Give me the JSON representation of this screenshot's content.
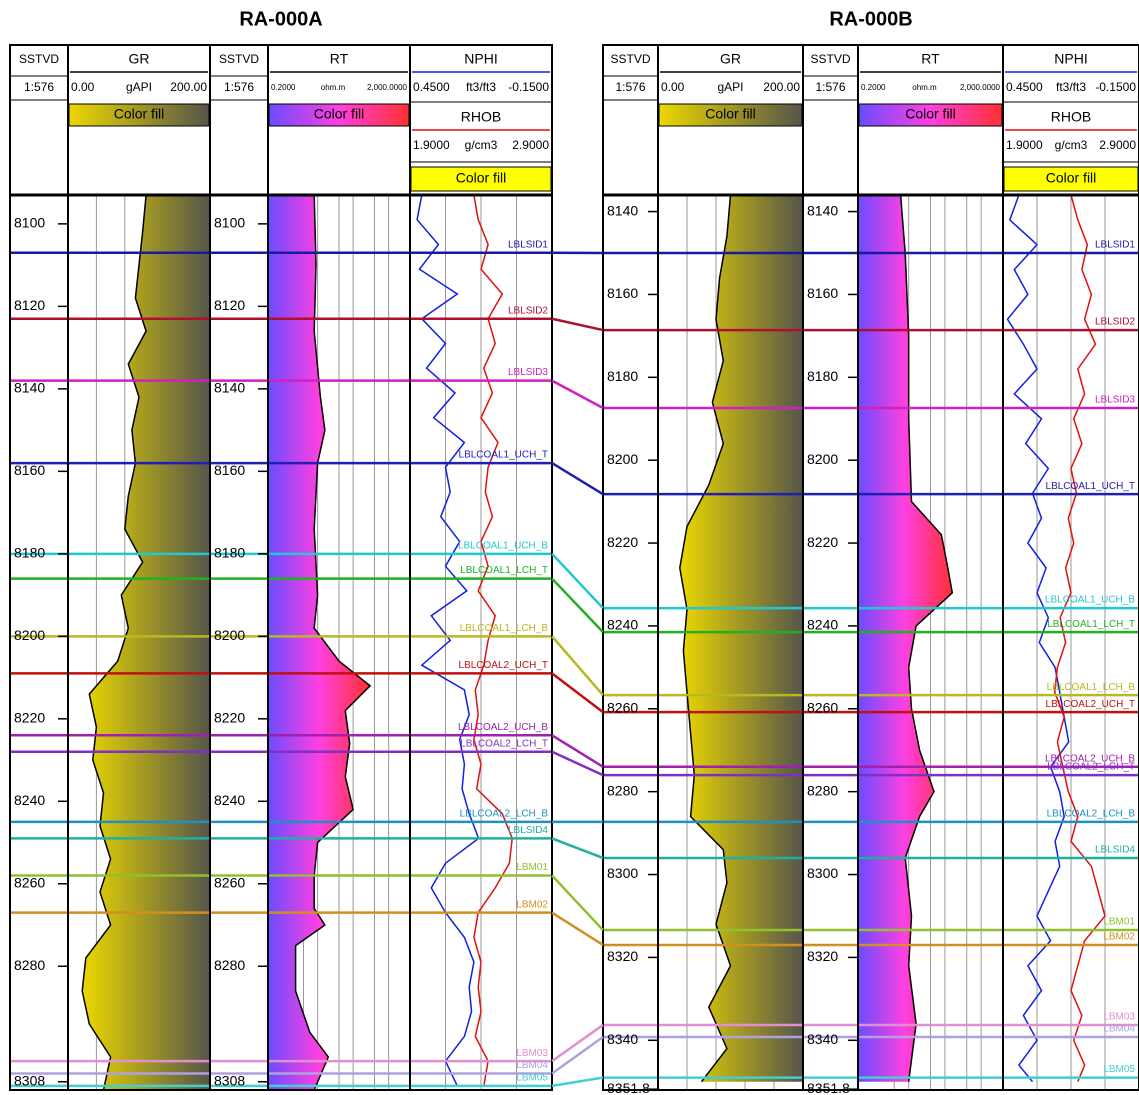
{
  "header": {
    "depth": {
      "title": "SSTVD",
      "scale": "1:576"
    },
    "tracks": [
      {
        "title": "GR",
        "unit": "gAPI",
        "scale": [
          {
            "value": 0,
            "label": "0.00"
          },
          {
            "value": 200,
            "label": "200.00"
          }
        ],
        "color": "#000000",
        "fill_label": "Color fill",
        "fill": [
          "#ecd800",
          "#55554a"
        ],
        "fill_side": "right",
        "grid": [
          40,
          80,
          120,
          160
        ]
      },
      {
        "title": "RT",
        "unit": "ohm.m",
        "scale": [
          {
            "value": 0.2,
            "label": "0.2000"
          },
          {
            "value": 2000,
            "label": "2,000.0000"
          }
        ],
        "log": true,
        "color": "#000000",
        "fill_label": "Color fill",
        "fill": [
          "#6a4cff",
          "#ff40e0",
          "#ff3030"
        ],
        "fill_side": "left",
        "grid": [
          2,
          5,
          20,
          50,
          200,
          500
        ]
      },
      {
        "title": "NPHI",
        "unit": "ft3/ft3",
        "scale": [
          {
            "value": 0.45,
            "label": "0.4500"
          },
          {
            "value": -0.15,
            "label": "-0.1500"
          }
        ],
        "color": "#1020e0",
        "grid": [
          0.3,
          0.15,
          0
        ]
      },
      {
        "title": "RHOB",
        "unit": "g/cm3",
        "scale": [
          {
            "value": 1.9,
            "label": "1.9000"
          },
          {
            "value": 2.9,
            "label": "2.9000"
          }
        ],
        "color": "#e01010",
        "fill_label": "Color fill",
        "fill": [
          "#ffff00"
        ]
      }
    ]
  },
  "tops": [
    {
      "name": "LBLSID1",
      "color": "#1a1aa0"
    },
    {
      "name": "LBLSID2",
      "color": "#b01030"
    },
    {
      "name": "LBLSID3",
      "color": "#d020c0"
    },
    {
      "name": "LBLCOAL1_UCH_T",
      "color": "#2020b0"
    },
    {
      "name": "LBLCOAL1_UCH_B",
      "color": "#20c8d0"
    },
    {
      "name": "LBLCOAL1_LCH_T",
      "color": "#20b020"
    },
    {
      "name": "LBLCOAL1_LCH_B",
      "color": "#b8b820"
    },
    {
      "name": "LBLCOAL2_UCH_T",
      "color": "#c01010"
    },
    {
      "name": "LBLCOAL2_UCH_B",
      "color": "#a020b0"
    },
    {
      "name": "LBLCOAL2_LCH_T",
      "color": "#8030c0"
    },
    {
      "name": "LBLCOAL2_LCH_B",
      "color": "#2090c0"
    },
    {
      "name": "LBLSID4",
      "color": "#20b0a0"
    },
    {
      "name": "LBM01",
      "color": "#90c030"
    },
    {
      "name": "LBM02",
      "color": "#d09020"
    },
    {
      "name": "LBM03",
      "color": "#e090d0"
    },
    {
      "name": "LBM04",
      "color": "#b0a0e0"
    },
    {
      "name": "LBM05",
      "color": "#40d0d0"
    }
  ],
  "wells": [
    {
      "name": "RA-000A",
      "depth_range": [
        8093,
        8310
      ],
      "depth_ticks": [
        8100,
        8120,
        8140,
        8160,
        8180,
        8200,
        8220,
        8240,
        8260,
        8280,
        8308
      ],
      "top_depths": [
        8107,
        8123,
        8138,
        8158,
        8180,
        8186,
        8200,
        8209,
        8224,
        8228,
        8245,
        8249,
        8258,
        8267,
        8303,
        8306,
        8309
      ],
      "curves": [
        {
          "depths": [
            8093,
            8102,
            8110,
            8118,
            8126,
            8134,
            8142,
            8150,
            8158,
            8166,
            8174,
            8182,
            8190,
            8198,
            8206,
            8214,
            8222,
            8230,
            8238,
            8246,
            8254,
            8262,
            8270,
            8278,
            8286,
            8294,
            8302,
            8310
          ],
          "values": [
            110,
            105,
            100,
            95,
            110,
            85,
            100,
            90,
            95,
            85,
            80,
            105,
            75,
            85,
            70,
            30,
            40,
            35,
            50,
            45,
            60,
            45,
            60,
            25,
            20,
            30,
            60,
            50
          ]
        },
        {
          "depths": [
            8093,
            8110,
            8126,
            8142,
            8150,
            8158,
            8174,
            8190,
            8198,
            8206,
            8212,
            8218,
            8226,
            8234,
            8242,
            8250,
            8258,
            8266,
            8270,
            8275,
            8286,
            8296,
            8302,
            8310
          ],
          "values": [
            4,
            4.5,
            4,
            6,
            8,
            5,
            4,
            5,
            4,
            20,
            150,
            30,
            40,
            30,
            50,
            5,
            4,
            4,
            8,
            1.2,
            1.2,
            3,
            10,
            4
          ]
        },
        {
          "depths": [
            8093,
            8099,
            8105,
            8111,
            8117,
            8123,
            8129,
            8135,
            8141,
            8147,
            8153,
            8159,
            8165,
            8171,
            8177,
            8183,
            8189,
            8195,
            8201,
            8207,
            8213,
            8219,
            8225,
            8231,
            8237,
            8243,
            8249,
            8255,
            8261,
            8267,
            8273,
            8279,
            8285,
            8291,
            8297,
            8303,
            8309
          ],
          "values": [
            0.4,
            0.42,
            0.33,
            0.41,
            0.25,
            0.4,
            0.3,
            0.38,
            0.26,
            0.35,
            0.22,
            0.3,
            0.28,
            0.32,
            0.24,
            0.3,
            0.21,
            0.36,
            0.28,
            0.4,
            0.22,
            0.2,
            0.24,
            0.22,
            0.23,
            0.2,
            0.16,
            0.3,
            0.36,
            0.3,
            0.22,
            0.18,
            0.2,
            0.19,
            0.22,
            0.3,
            0.25
          ]
        },
        {
          "depths": [
            8093,
            8099,
            8105,
            8111,
            8117,
            8123,
            8129,
            8135,
            8141,
            8147,
            8153,
            8159,
            8165,
            8171,
            8177,
            8183,
            8189,
            8195,
            8201,
            8207,
            8213,
            8219,
            8225,
            8231,
            8237,
            8243,
            8249,
            8255,
            8261,
            8267,
            8273,
            8279,
            8285,
            8291,
            8297,
            8303,
            8309
          ],
          "values": [
            2.35,
            2.38,
            2.45,
            2.4,
            2.55,
            2.45,
            2.5,
            2.42,
            2.48,
            2.4,
            2.52,
            2.45,
            2.43,
            2.48,
            2.4,
            2.45,
            2.38,
            2.5,
            2.45,
            2.42,
            2.36,
            2.38,
            2.35,
            2.4,
            2.37,
            2.55,
            2.62,
            2.6,
            2.5,
            2.38,
            2.35,
            2.4,
            2.38,
            2.4,
            2.36,
            2.45,
            2.42
          ]
        }
      ]
    },
    {
      "name": "RA-000B",
      "depth_range": [
        8136,
        8352
      ],
      "depth_ticks": [
        8140,
        8160,
        8180,
        8200,
        8220,
        8240,
        8260,
        8280,
        8300,
        8320,
        8340,
        8351.8
      ],
      "top_depths": [
        8150,
        8168.6,
        8187.4,
        8208.2,
        8235.7,
        8241.5,
        8256.7,
        8260.8,
        8274,
        8276,
        8287.3,
        8296,
        8313.4,
        8317,
        8336.3,
        8339.2,
        8349
      ],
      "curves": [
        {
          "depths": [
            8136,
            8146,
            8156,
            8166,
            8176,
            8186,
            8196,
            8206,
            8216,
            8226,
            8236,
            8246,
            8256,
            8266,
            8276,
            8286,
            8294,
            8302,
            8312,
            8322,
            8332,
            8342,
            8350
          ],
          "values": [
            100,
            95,
            85,
            80,
            90,
            75,
            90,
            70,
            40,
            30,
            40,
            35,
            40,
            45,
            50,
            45,
            90,
            95,
            80,
            100,
            70,
            95,
            60
          ]
        },
        {
          "depths": [
            8136,
            8150,
            8170,
            8190,
            8210,
            8218,
            8226,
            8232,
            8240,
            8250,
            8260,
            8270,
            8280,
            8286,
            8296,
            8310,
            8322,
            8336,
            8350
          ],
          "values": [
            3,
            4,
            5,
            5,
            6,
            40,
            60,
            80,
            8,
            5,
            6,
            10,
            25,
            10,
            4,
            6,
            5,
            8,
            5
          ]
        },
        {
          "depths": [
            8136,
            8142,
            8148,
            8154,
            8160,
            8166,
            8172,
            8178,
            8184,
            8190,
            8196,
            8202,
            8208,
            8214,
            8220,
            8226,
            8232,
            8238,
            8244,
            8250,
            8256,
            8262,
            8268,
            8274,
            8280,
            8286,
            8292,
            8298,
            8304,
            8310,
            8316,
            8322,
            8328,
            8334,
            8340,
            8346,
            8350
          ],
          "values": [
            0.38,
            0.42,
            0.3,
            0.4,
            0.34,
            0.43,
            0.36,
            0.3,
            0.4,
            0.28,
            0.35,
            0.25,
            0.32,
            0.28,
            0.34,
            0.26,
            0.3,
            0.25,
            0.29,
            0.22,
            0.2,
            0.18,
            0.16,
            0.24,
            0.2,
            0.18,
            0.22,
            0.2,
            0.25,
            0.3,
            0.24,
            0.34,
            0.28,
            0.36,
            0.3,
            0.38,
            0.32
          ]
        },
        {
          "depths": [
            8136,
            8142,
            8148,
            8154,
            8160,
            8166,
            8172,
            8178,
            8184,
            8190,
            8196,
            8202,
            8208,
            8214,
            8220,
            8226,
            8232,
            8238,
            8244,
            8250,
            8256,
            8262,
            8268,
            8274,
            8280,
            8286,
            8292,
            8298,
            8304,
            8310,
            8316,
            8322,
            8328,
            8334,
            8340,
            8346,
            8350
          ],
          "values": [
            2.4,
            2.45,
            2.52,
            2.48,
            2.55,
            2.5,
            2.58,
            2.45,
            2.5,
            2.42,
            2.48,
            2.4,
            2.44,
            2.38,
            2.42,
            2.36,
            2.4,
            2.32,
            2.36,
            2.3,
            2.28,
            2.35,
            2.3,
            2.34,
            2.38,
            2.45,
            2.4,
            2.55,
            2.6,
            2.65,
            2.5,
            2.45,
            2.4,
            2.48,
            2.42,
            2.5,
            2.45
          ]
        }
      ]
    }
  ]
}
